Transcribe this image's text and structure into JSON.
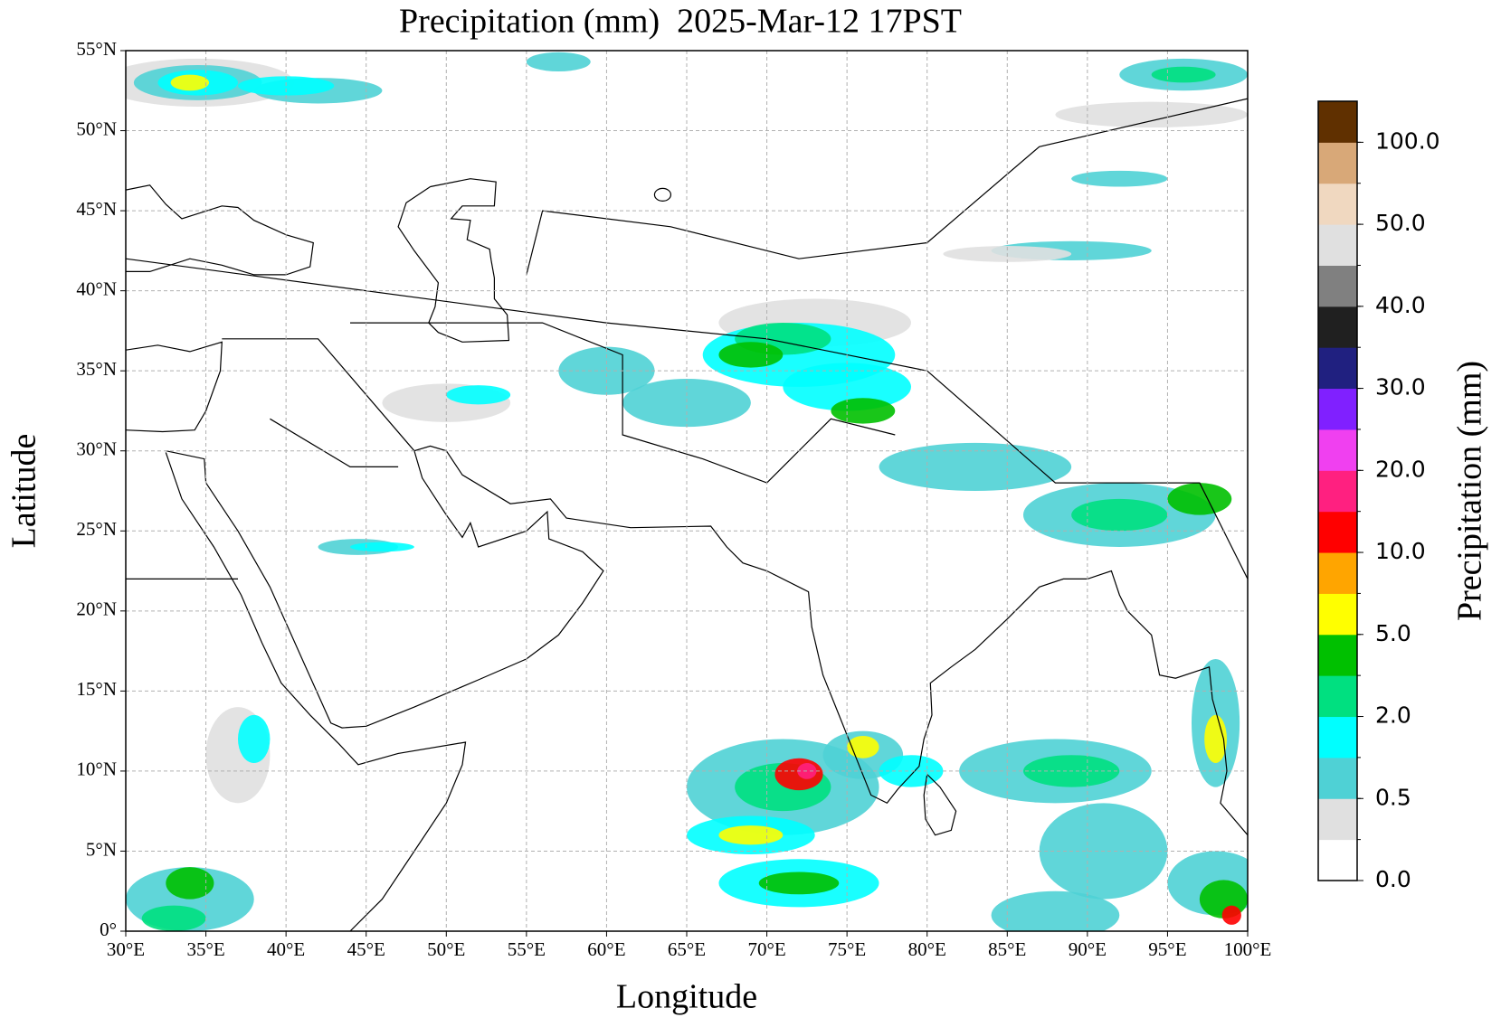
{
  "chart_data": {
    "type": "map",
    "title": "Precipitation (mm)  2025-Mar-12 17PST",
    "x_label": "Longitude",
    "y_label": "Latitude",
    "xlim": [
      30,
      100
    ],
    "ylim": [
      0,
      55
    ],
    "xticks": [
      {
        "value": 30,
        "label": "30°E"
      },
      {
        "value": 35,
        "label": "35°E"
      },
      {
        "value": 40,
        "label": "40°E"
      },
      {
        "value": 45,
        "label": "45°E"
      },
      {
        "value": 50,
        "label": "50°E"
      },
      {
        "value": 55,
        "label": "55°E"
      },
      {
        "value": 60,
        "label": "60°E"
      },
      {
        "value": 65,
        "label": "65°E"
      },
      {
        "value": 70,
        "label": "70°E"
      },
      {
        "value": 75,
        "label": "75°E"
      },
      {
        "value": 80,
        "label": "80°E"
      },
      {
        "value": 85,
        "label": "85°E"
      },
      {
        "value": 90,
        "label": "90°E"
      },
      {
        "value": 95,
        "label": "95°E"
      },
      {
        "value": 100,
        "label": "100°E"
      }
    ],
    "yticks": [
      {
        "value": 0,
        "label": "0°"
      },
      {
        "value": 5,
        "label": "5°N"
      },
      {
        "value": 10,
        "label": "10°N"
      },
      {
        "value": 15,
        "label": "15°N"
      },
      {
        "value": 20,
        "label": "20°N"
      },
      {
        "value": 25,
        "label": "25°N"
      },
      {
        "value": 30,
        "label": "30°N"
      },
      {
        "value": 35,
        "label": "35°N"
      },
      {
        "value": 40,
        "label": "40°N"
      },
      {
        "value": 45,
        "label": "45°N"
      },
      {
        "value": 50,
        "label": "50°N"
      },
      {
        "value": 55,
        "label": "55°N"
      }
    ],
    "grid": true,
    "colorbar": {
      "label": "Precipitation (mm)",
      "colors": [
        "#ffffff",
        "#e0e0e0",
        "#4fd1d5",
        "#00ffff",
        "#00e080",
        "#00c000",
        "#ffff00",
        "#ffa500",
        "#ff0000",
        "#ff2080",
        "#f040f0",
        "#8020ff",
        "#202080",
        "#202020",
        "#808080",
        "#e0e0e0",
        "#f0d8c0",
        "#d8a878",
        "#603000"
      ],
      "ticks": [
        {
          "value": 0,
          "label": "0.0"
        },
        {
          "value": 0.5,
          "label": "0.5"
        },
        {
          "value": 2,
          "label": "2.0"
        },
        {
          "value": 5,
          "label": "5.0"
        },
        {
          "value": 10,
          "label": "10.0"
        },
        {
          "value": 20,
          "label": "20.0"
        },
        {
          "value": 30,
          "label": "30.0"
        },
        {
          "value": 40,
          "label": "40.0"
        },
        {
          "value": 50,
          "label": "50.0"
        },
        {
          "value": 100,
          "label": "100.0"
        }
      ]
    }
  }
}
